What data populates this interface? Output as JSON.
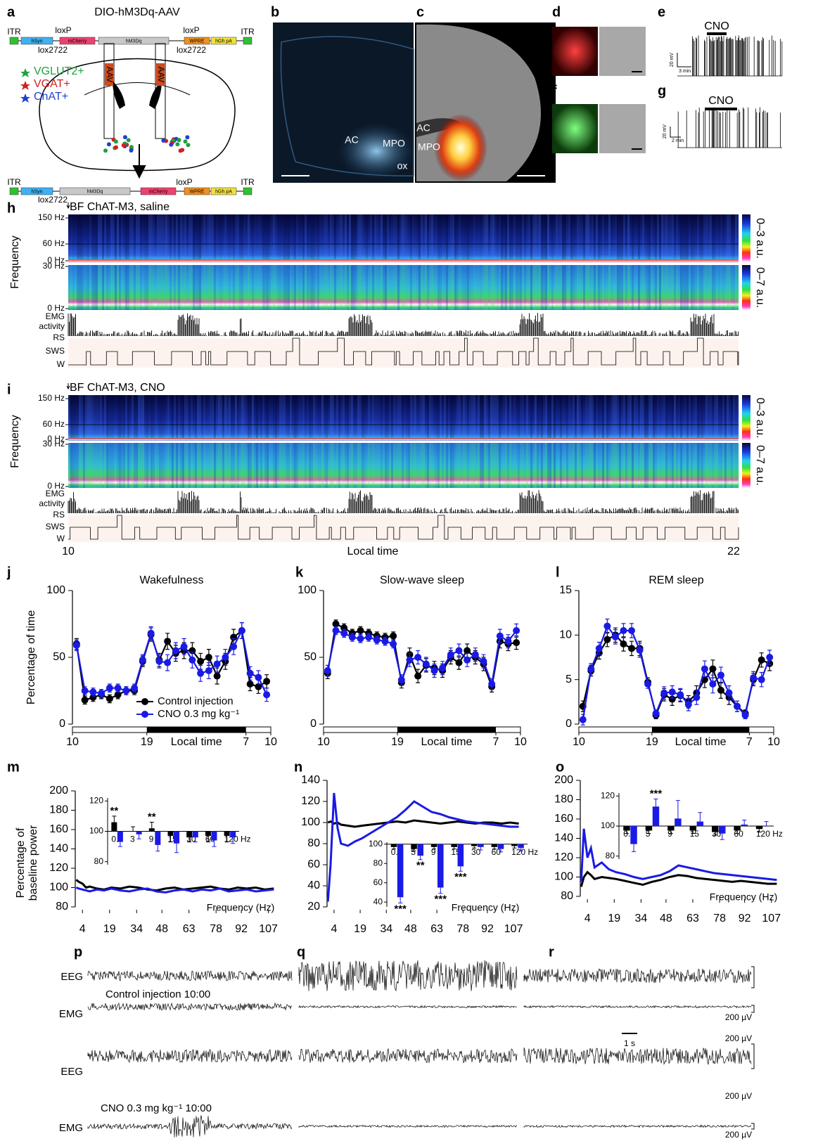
{
  "figure": {
    "letters": [
      "a",
      "b",
      "c",
      "d",
      "e",
      "f",
      "g",
      "h",
      "i",
      "j",
      "k",
      "l",
      "m",
      "n",
      "o",
      "p",
      "q",
      "r"
    ],
    "a": {
      "title": "DIO-hM3Dq-AAV",
      "top": [
        "ITR",
        "hSyn",
        "mCherry",
        "hM3Dq",
        "WPRE",
        "hGh pA",
        "ITR"
      ],
      "top_lox": [
        "loxP",
        "loxP",
        "lox2722",
        "lox2722"
      ],
      "cells": [
        "VGLUT2+",
        "VGAT+",
        "ChAT+"
      ],
      "aav": "AAV",
      "bottom": [
        "ITR",
        "hSyn",
        "hM3Dq",
        "mCherry",
        "WPRE",
        "hGh pA",
        "ITR"
      ],
      "bottom_lox": [
        "loxP",
        "lox2722"
      ]
    },
    "b": [
      "AC",
      "MPO",
      "ox"
    ],
    "c": [
      "AC",
      "MPO"
    ],
    "e": {
      "drug": "CNO",
      "volt": "20 mV",
      "time": "3 min"
    },
    "g": {
      "drug": "CNO",
      "volt": "20 mV",
      "time": "2 min"
    },
    "h": {
      "title": "BF ChAT-M3, saline"
    },
    "i": {
      "title": "BF ChAT-M3, CNO"
    },
    "spectrogram": {
      "ylabel": "Frequency",
      "high_ticks": [
        "150 Hz",
        "60 Hz",
        "0 Hz"
      ],
      "low_ticks": [
        "30 Hz",
        "0 Hz"
      ],
      "high_scale": "0–3 a.u.",
      "low_scale": "0–7 a.u.",
      "emg": [
        "EMG",
        "activity"
      ],
      "states": [
        "RS",
        "SWS",
        "W"
      ]
    },
    "time_axis": {
      "start": "10",
      "label": "Local time",
      "end": "22"
    },
    "traces": {
      "eeg": "EEG",
      "emg": "EMG",
      "control": "Control injection 10:00",
      "cno": "CNO 0.3 mg kg⁻¹ 10:00",
      "scale": "200 µV",
      "time": "1 s"
    }
  },
  "chart_data": [
    {
      "type": "line",
      "title": "Wakefulness",
      "ylabel": "Percentage of time",
      "xlabel": "Local time",
      "legend": "lower center",
      "x": [
        0.5,
        1.5,
        2.5,
        3.5,
        4.5,
        5.5,
        6.5,
        7.5,
        8.5,
        9.5,
        10.5,
        11.5,
        12.5,
        13.5,
        14.5,
        15.5,
        16.5,
        17.5,
        18.5,
        19.5,
        20.5,
        21.5,
        22.5,
        23.5
      ],
      "xlim": [
        0,
        24
      ],
      "xticks": [
        {
          "value": 0,
          "label": "10"
        },
        {
          "value": 9,
          "label": "19"
        },
        {
          "value": 21,
          "label": "7"
        },
        {
          "value": 24,
          "label": "10"
        }
      ],
      "ylim": [
        0,
        100
      ],
      "yticks": [
        0,
        50,
        100
      ],
      "series": [
        {
          "name": "Control injection",
          "color": "#000000",
          "values": [
            60,
            18,
            20,
            22,
            19,
            22,
            25,
            25,
            47,
            67,
            48,
            62,
            53,
            55,
            55,
            47,
            50,
            36,
            47,
            65,
            70,
            30,
            28,
            32
          ],
          "errors": [
            4,
            3,
            3,
            3,
            3,
            3,
            3,
            3,
            4,
            5,
            5,
            6,
            6,
            6,
            6,
            6,
            6,
            6,
            6,
            6,
            6,
            5,
            5,
            5
          ]
        },
        {
          "name": "CNO 0.3 mg kg⁻¹",
          "color": "#1a1ae6",
          "values": [
            59,
            25,
            24,
            23,
            27,
            27,
            25,
            27,
            48,
            68,
            47,
            46,
            55,
            58,
            48,
            38,
            40,
            45,
            50,
            58,
            70,
            38,
            35,
            22
          ],
          "errors": [
            4,
            3,
            3,
            3,
            3,
            3,
            3,
            3,
            4,
            5,
            5,
            6,
            6,
            6,
            6,
            6,
            6,
            6,
            6,
            6,
            6,
            5,
            5,
            5
          ]
        }
      ]
    },
    {
      "type": "line",
      "title": "Slow-wave sleep",
      "xlabel": "Local time",
      "x": [
        0.5,
        1.5,
        2.5,
        3.5,
        4.5,
        5.5,
        6.5,
        7.5,
        8.5,
        9.5,
        10.5,
        11.5,
        12.5,
        13.5,
        14.5,
        15.5,
        16.5,
        17.5,
        18.5,
        19.5,
        20.5,
        21.5,
        22.5,
        23.5
      ],
      "xlim": [
        0,
        24
      ],
      "xticks": [
        {
          "value": 0,
          "label": "10"
        },
        {
          "value": 9,
          "label": "19"
        },
        {
          "value": 21,
          "label": "7"
        },
        {
          "value": 24,
          "label": "10"
        }
      ],
      "ylim": [
        0,
        100
      ],
      "yticks": [
        0,
        50,
        100
      ],
      "series": [
        {
          "color": "#000000",
          "values": [
            38,
            75,
            72,
            68,
            70,
            68,
            66,
            65,
            66,
            31,
            52,
            36,
            44,
            42,
            40,
            50,
            46,
            55,
            50,
            45,
            28,
            62,
            60,
            61
          ],
          "errors": [
            4,
            3,
            3,
            3,
            3,
            3,
            3,
            3,
            3,
            4,
            5,
            5,
            5,
            5,
            5,
            5,
            5,
            5,
            5,
            5,
            4,
            5,
            5,
            5
          ]
        },
        {
          "color": "#1a1ae6",
          "values": [
            40,
            70,
            68,
            65,
            64,
            65,
            63,
            62,
            60,
            33,
            48,
            50,
            45,
            40,
            42,
            52,
            55,
            48,
            52,
            47,
            30,
            66,
            62,
            70
          ],
          "errors": [
            4,
            3,
            3,
            3,
            3,
            3,
            3,
            3,
            3,
            4,
            5,
            5,
            5,
            5,
            5,
            5,
            5,
            5,
            5,
            5,
            4,
            5,
            5,
            5
          ]
        }
      ]
    },
    {
      "type": "line",
      "title": "REM sleep",
      "xlabel": "Local time",
      "x": [
        0.5,
        1.5,
        2.5,
        3.5,
        4.5,
        5.5,
        6.5,
        7.5,
        8.5,
        9.5,
        10.5,
        11.5,
        12.5,
        13.5,
        14.5,
        15.5,
        16.5,
        17.5,
        18.5,
        19.5,
        20.5,
        21.5,
        22.5,
        23.5
      ],
      "xlim": [
        0,
        24
      ],
      "xticks": [
        {
          "value": 0,
          "label": "10"
        },
        {
          "value": 9,
          "label": "19"
        },
        {
          "value": 21,
          "label": "7"
        },
        {
          "value": 24,
          "label": "10"
        }
      ],
      "ylim": [
        0,
        15
      ],
      "yticks": [
        0,
        5,
        10,
        15
      ],
      "series": [
        {
          "color": "#000000",
          "values": [
            2,
            6,
            8,
            9.5,
            10,
            9,
            8.5,
            8.5,
            4.7,
            1,
            3.3,
            2.8,
            3.2,
            2.5,
            3.5,
            5,
            6.2,
            3.8,
            3,
            2,
            1.2,
            5,
            7.2,
            6.8
          ],
          "errors": [
            0.6,
            0.6,
            0.7,
            0.8,
            0.8,
            0.8,
            0.8,
            0.8,
            0.5,
            0.4,
            0.7,
            0.7,
            0.7,
            0.7,
            0.8,
            0.9,
            1,
            0.9,
            0.8,
            0.6,
            0.4,
            0.7,
            0.8,
            0.8
          ]
        },
        {
          "color": "#1a1ae6",
          "values": [
            0.5,
            6.2,
            8.5,
            11,
            9.8,
            10.5,
            10.5,
            8.3,
            4.5,
            1.2,
            3.5,
            3.6,
            3.3,
            2.2,
            3,
            6.2,
            4.5,
            5.5,
            3.5,
            2,
            1,
            5.2,
            5,
            7.5
          ],
          "errors": [
            0.6,
            0.6,
            0.7,
            0.8,
            0.8,
            0.8,
            0.8,
            0.8,
            0.5,
            0.4,
            0.7,
            0.7,
            0.7,
            0.7,
            0.8,
            0.9,
            1,
            0.9,
            0.8,
            0.6,
            0.4,
            0.7,
            0.8,
            0.8
          ]
        }
      ]
    },
    {
      "type": "line",
      "ylabel": [
        "Percentage of",
        "baseline power"
      ],
      "xlabel": "Frequency (Hz)",
      "x": [
        0.5,
        2,
        4,
        6,
        8,
        12,
        16,
        20,
        25,
        30,
        35,
        40,
        45,
        50,
        55,
        60,
        65,
        70,
        75,
        80,
        85,
        90,
        95,
        100,
        105,
        110
      ],
      "xlim": [
        0,
        113
      ],
      "xticks": [
        4,
        19,
        34,
        48,
        63,
        78,
        92,
        107
      ],
      "ylim": [
        80,
        200
      ],
      "yticks": [
        80,
        100,
        120,
        140,
        160,
        180,
        200
      ],
      "series": [
        {
          "color": "#000000",
          "values": [
            108,
            106,
            104,
            100,
            101,
            99,
            98,
            100,
            99,
            101,
            100,
            98,
            97,
            99,
            100,
            98,
            99,
            100,
            101,
            99,
            98,
            100,
            99,
            100,
            98,
            99
          ]
        },
        {
          "color": "#1a1ae6",
          "values": [
            100,
            99,
            98,
            97,
            96,
            98,
            97,
            99,
            97,
            96,
            98,
            99,
            96,
            95,
            97,
            98,
            96,
            98,
            97,
            99,
            96,
            97,
            98,
            96,
            97,
            98
          ]
        }
      ]
    },
    {
      "type": "line",
      "xlabel": "Frequency (Hz)",
      "x": [
        0.5,
        2,
        4,
        6,
        8,
        12,
        16,
        20,
        25,
        30,
        35,
        40,
        45,
        50,
        55,
        60,
        65,
        70,
        75,
        80,
        85,
        90,
        95,
        100,
        105,
        110
      ],
      "xlim": [
        0,
        113
      ],
      "xticks": [
        4,
        19,
        34,
        48,
        63,
        78,
        92,
        107
      ],
      "ylim": [
        20,
        140
      ],
      "yticks": [
        20,
        40,
        60,
        80,
        100,
        120,
        140
      ],
      "series": [
        {
          "color": "#000000",
          "values": [
            100,
            101,
            99,
            100,
            98,
            97,
            96,
            97,
            98,
            99,
            100,
            101,
            100,
            102,
            101,
            100,
            99,
            100,
            101,
            100,
            99,
            100,
            100,
            99,
            100,
            99
          ]
        },
        {
          "color": "#1a1ae6",
          "values": [
            25,
            60,
            128,
            95,
            80,
            78,
            82,
            85,
            90,
            95,
            100,
            105,
            112,
            120,
            115,
            110,
            108,
            105,
            103,
            101,
            100,
            99,
            98,
            97,
            96,
            96
          ]
        }
      ]
    },
    {
      "type": "line",
      "xlabel": "Frequency (Hz)",
      "x": [
        0.5,
        2,
        4,
        6,
        8,
        12,
        16,
        20,
        25,
        30,
        35,
        40,
        45,
        50,
        55,
        60,
        65,
        70,
        75,
        80,
        85,
        90,
        95,
        100,
        105,
        110
      ],
      "xlim": [
        0,
        113
      ],
      "xticks": [
        4,
        19,
        34,
        48,
        63,
        78,
        92,
        107
      ],
      "ylim": [
        80,
        200
      ],
      "yticks": [
        80,
        100,
        120,
        140,
        160,
        180,
        200
      ],
      "series": [
        {
          "color": "#000000",
          "values": [
            90,
            100,
            105,
            102,
            98,
            100,
            99,
            98,
            96,
            94,
            92,
            95,
            97,
            100,
            102,
            101,
            99,
            98,
            97,
            96,
            95,
            96,
            95,
            94,
            93,
            93
          ]
        },
        {
          "color": "#1a1ae6",
          "values": [
            95,
            150,
            120,
            130,
            110,
            115,
            108,
            105,
            103,
            100,
            98,
            100,
            102,
            106,
            112,
            110,
            108,
            106,
            104,
            103,
            102,
            101,
            100,
            99,
            98,
            97
          ]
        }
      ]
    },
    {
      "type": "bar",
      "categories": [
        "0.5",
        "3",
        "9",
        "15",
        "30",
        "60",
        "120 Hz"
      ],
      "ylim": [
        78,
        122
      ],
      "yticks": [
        80,
        100,
        120
      ],
      "baseline": 100,
      "series": [
        {
          "color": "#000000",
          "values": [
            106,
            100,
            102,
            97,
            96,
            97,
            97
          ],
          "errors": [
            4,
            3,
            4,
            4,
            3,
            4,
            4
          ]
        },
        {
          "color": "#1a1ae6",
          "values": [
            93,
            98,
            91,
            92,
            96,
            94,
            96
          ],
          "errors": [
            3,
            3,
            4,
            6,
            3,
            4,
            4
          ]
        }
      ],
      "annotations": [
        {
          "text": "**",
          "category": 0,
          "series": 0
        },
        {
          "text": "**",
          "category": 2,
          "series": 0
        }
      ]
    },
    {
      "type": "bar",
      "categories": [
        "0.5",
        "5",
        "9",
        "15",
        "30",
        "60",
        "120 Hz"
      ],
      "ylim": [
        35,
        102
      ],
      "yticks": [
        40,
        60,
        80,
        100
      ],
      "baseline": 100,
      "series": [
        {
          "color": "#000000",
          "values": [
            97,
            95,
            97,
            97,
            98,
            97,
            98
          ],
          "errors": [
            2,
            2,
            2,
            2,
            2,
            2,
            2
          ]
        },
        {
          "color": "#1a1ae6",
          "values": [
            45,
            88,
            55,
            77,
            97,
            95,
            96
          ],
          "errors": [
            6,
            4,
            6,
            5,
            3,
            3,
            3
          ]
        }
      ],
      "annotations": [
        {
          "text": "***",
          "category": 0,
          "series": 1
        },
        {
          "text": "**",
          "category": 1,
          "series": 1
        },
        {
          "text": "***",
          "category": 2,
          "series": 1
        },
        {
          "text": "***",
          "category": 3,
          "series": 1
        }
      ]
    },
    {
      "type": "bar",
      "categories": [
        "0.5",
        "5",
        "9",
        "15",
        "30",
        "60",
        "120 Hz"
      ],
      "ylim": [
        78,
        122
      ],
      "yticks": [
        80,
        100,
        120
      ],
      "baseline": 100,
      "series": [
        {
          "color": "#000000",
          "values": [
            97,
            97,
            97,
            97,
            96,
            97,
            98
          ],
          "errors": [
            2,
            2,
            2,
            2,
            2,
            2,
            2
          ]
        },
        {
          "color": "#1a1ae6",
          "values": [
            88,
            113,
            105,
            103,
            95,
            101,
            100
          ],
          "errors": [
            5,
            5,
            12,
            6,
            4,
            3,
            3
          ]
        }
      ],
      "annotations": [
        {
          "text": "***",
          "category": 1,
          "series": 1
        }
      ]
    }
  ]
}
